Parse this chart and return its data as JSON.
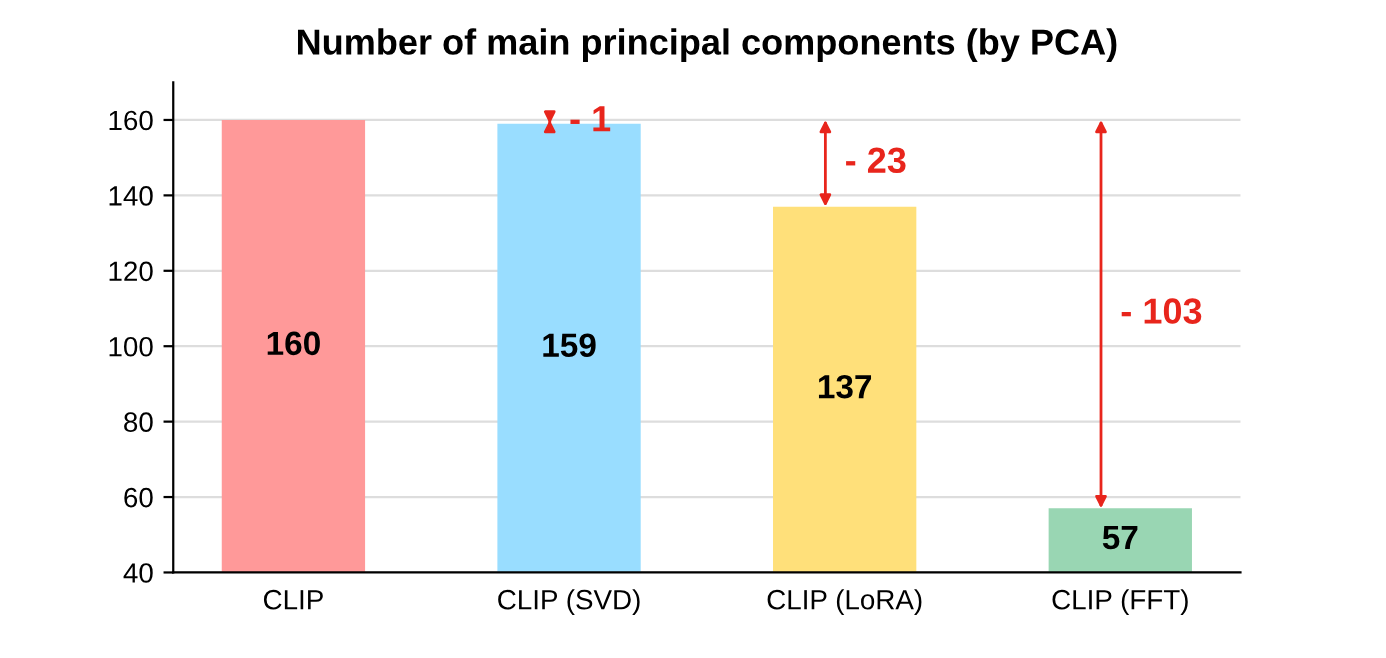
{
  "chart_data": {
    "type": "bar",
    "title": "Number of main principal components (by PCA)",
    "categories": [
      "CLIP",
      "CLIP (SVD)",
      "CLIP (LoRA)",
      "CLIP (FFT)"
    ],
    "values": [
      160,
      159,
      137,
      57
    ],
    "colors": [
      "#ff9999",
      "#99ddff",
      "#ffe07a",
      "#99d6b3"
    ],
    "ylim": [
      40,
      170
    ],
    "yticks": [
      40,
      60,
      80,
      100,
      120,
      140,
      160
    ],
    "grid": "y",
    "data_labels": true,
    "annotations": [
      "- 1",
      "- 23",
      "- 103"
    ]
  }
}
